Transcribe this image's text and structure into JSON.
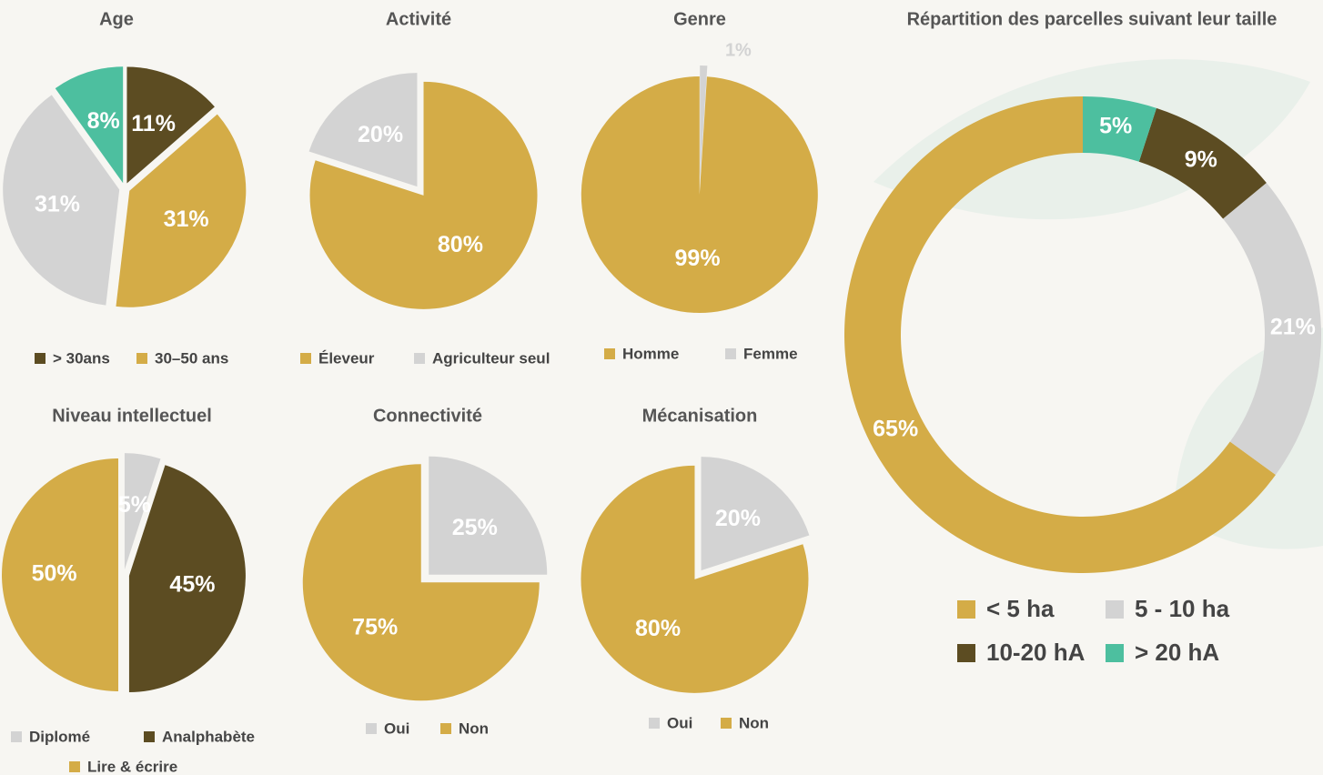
{
  "chart_data": [
    {
      "type": "pie",
      "title": "Age",
      "categories": [
        "> 30ans",
        "30–50 ans",
        null,
        null
      ],
      "values": [
        11,
        31,
        31,
        8
      ],
      "value_labels": [
        "11%",
        "31%",
        "31%",
        "8%"
      ],
      "colors": [
        "#5c4c22",
        "#d4ac47",
        "#d3d3d3",
        "#4dbf9f"
      ],
      "direction": "clockwise"
    },
    {
      "type": "pie",
      "title": "Activité",
      "categories": [
        "Éleveur",
        "Agriculteur seul"
      ],
      "values": [
        80,
        20
      ],
      "value_labels": [
        "80%",
        "20%"
      ],
      "colors": [
        "#d4ac47",
        "#d3d3d3"
      ],
      "direction": "clockwise"
    },
    {
      "type": "pie",
      "title": "Genre",
      "categories": [
        "Homme",
        "Femme"
      ],
      "values": [
        99,
        1
      ],
      "value_labels": [
        "99%",
        "1%"
      ],
      "colors": [
        "#d4ac47",
        "#d3d3d3"
      ],
      "direction": "counterclockwise"
    },
    {
      "type": "pie",
      "title": "Niveau intellectuel",
      "categories": [
        "Diplomé",
        "Analphabète",
        "Lire & écrire"
      ],
      "values": [
        5,
        45,
        50
      ],
      "value_labels": [
        "5%",
        "45%",
        "50%"
      ],
      "colors": [
        "#d3d3d3",
        "#5c4c22",
        "#d4ac47"
      ],
      "direction": "clockwise"
    },
    {
      "type": "pie",
      "title": "Connectivité",
      "categories": [
        "Oui",
        "Non"
      ],
      "values": [
        25,
        75
      ],
      "value_labels": [
        "25%",
        "75%"
      ],
      "colors": [
        "#d3d3d3",
        "#d4ac47"
      ],
      "direction": "clockwise"
    },
    {
      "type": "pie",
      "title": "Mécanisation",
      "categories": [
        "Oui",
        "Non"
      ],
      "values": [
        20,
        80
      ],
      "value_labels": [
        "20%",
        "80%"
      ],
      "colors": [
        "#d3d3d3",
        "#d4ac47"
      ],
      "direction": "clockwise"
    },
    {
      "type": "donut",
      "title": "Répartition des parcelles suivant leur taille",
      "categories": [
        "< 5 ha",
        "5 - 10 ha",
        "10-20 hA",
        "> 20 hA"
      ],
      "values": [
        65,
        21,
        9,
        5
      ],
      "value_labels": [
        "65%",
        "21%",
        "9%",
        "5%"
      ],
      "colors": [
        "#d4ac47",
        "#d3d3d3",
        "#5c4c22",
        "#4dbf9f"
      ],
      "direction": "counterclockwise"
    }
  ]
}
